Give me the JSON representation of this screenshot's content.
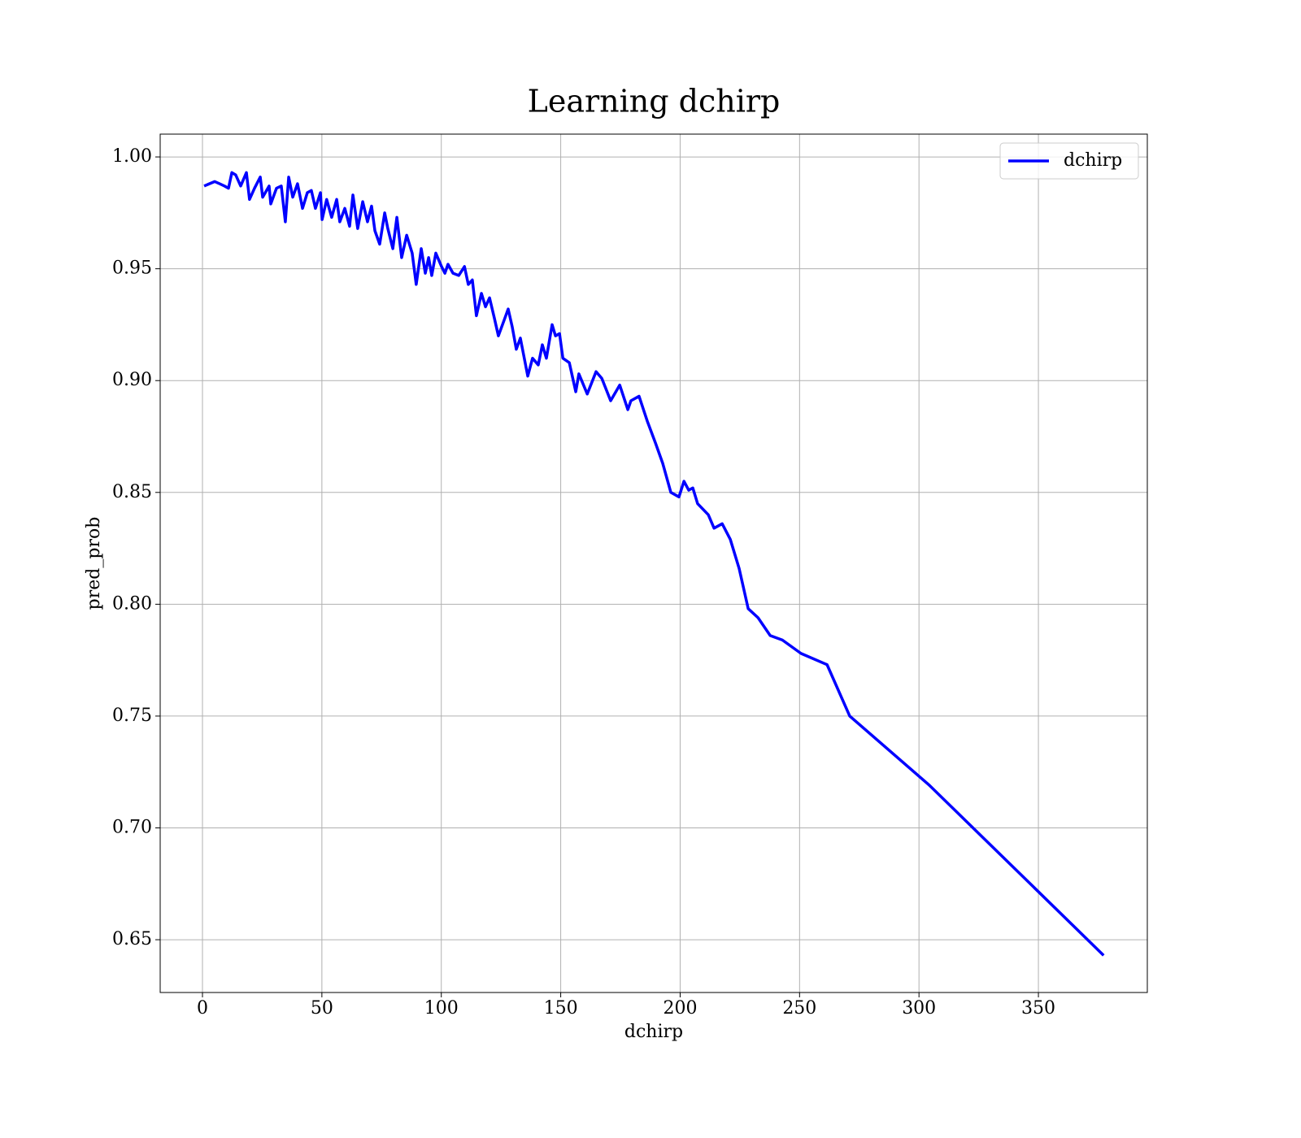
{
  "chart_data": {
    "type": "line",
    "title": "Learning dchirp",
    "xlabel": "dchirp",
    "ylabel": "pred_prob",
    "x": [
      0.7,
      5.1,
      7.2,
      9.2,
      10.9,
      12.3,
      13.9,
      16,
      18.4,
      19.7,
      21.8,
      24.2,
      25.2,
      27.9,
      28.6,
      31,
      33,
      34.7,
      36.1,
      37.8,
      39.8,
      41.9,
      43.9,
      45.6,
      47.3,
      49.4,
      50.1,
      52,
      54.1,
      56.2,
      57.5,
      59.6,
      61.6,
      63,
      65,
      67.1,
      69.1,
      70.8,
      72.2,
      74.2,
      76.3,
      77.6,
      79.7,
      81.4,
      83.4,
      85.5,
      87.8,
      89.5,
      91.6,
      93.3,
      94.7,
      96,
      97.7,
      100.1,
      101.5,
      102.8,
      104.9,
      107.3,
      109.7,
      111.3,
      113,
      114.7,
      116.8,
      118.5,
      120.2,
      122.2,
      123.9,
      126.3,
      128,
      129.7,
      131.4,
      133.1,
      136.2,
      138.2,
      140.6,
      142.3,
      144,
      146.4,
      147.8,
      149.5,
      150.9,
      153.6,
      156.3,
      157.6,
      161.1,
      164.8,
      167.2,
      170.9,
      174.7,
      178.1,
      179.4,
      182.8,
      186.2,
      189.7,
      192.7,
      196.1,
      199.5,
      201.6,
      203.6,
      205.3,
      207.3,
      211.8,
      214.2,
      217.6,
      221,
      224.7,
      228.5,
      232.6,
      237.7,
      242.8,
      250.6,
      261.5,
      271,
      304.4,
      377.3
    ],
    "series": [
      {
        "name": "dchirp",
        "color": "#0000ff",
        "values": [
          0.987,
          0.989,
          0.988,
          0.987,
          0.986,
          0.993,
          0.992,
          0.987,
          0.993,
          0.981,
          0.986,
          0.991,
          0.982,
          0.987,
          0.979,
          0.986,
          0.987,
          0.971,
          0.991,
          0.982,
          0.988,
          0.977,
          0.984,
          0.985,
          0.977,
          0.984,
          0.972,
          0.981,
          0.973,
          0.981,
          0.971,
          0.977,
          0.969,
          0.983,
          0.968,
          0.98,
          0.971,
          0.978,
          0.967,
          0.961,
          0.975,
          0.968,
          0.959,
          0.973,
          0.955,
          0.965,
          0.957,
          0.943,
          0.959,
          0.948,
          0.955,
          0.947,
          0.957,
          0.951,
          0.948,
          0.952,
          0.948,
          0.947,
          0.951,
          0.943,
          0.945,
          0.929,
          0.939,
          0.933,
          0.937,
          0.928,
          0.92,
          0.927,
          0.932,
          0.924,
          0.914,
          0.919,
          0.902,
          0.91,
          0.907,
          0.916,
          0.91,
          0.925,
          0.92,
          0.921,
          0.91,
          0.908,
          0.895,
          0.903,
          0.894,
          0.904,
          0.901,
          0.891,
          0.898,
          0.887,
          0.891,
          0.893,
          0.882,
          0.872,
          0.863,
          0.85,
          0.848,
          0.855,
          0.851,
          0.852,
          0.845,
          0.84,
          0.834,
          0.836,
          0.829,
          0.816,
          0.798,
          0.794,
          0.786,
          0.784,
          0.778,
          0.773,
          0.75,
          0.719,
          0.643
        ]
      }
    ],
    "xlim": [
      -17.7,
      395.6
    ],
    "ylim": [
      0.6264,
      1.0102
    ],
    "xticks": [
      0,
      50,
      100,
      150,
      200,
      250,
      300,
      350
    ],
    "yticks": [
      0.65,
      {
        "value": 0.7,
        "label": "0.70"
      },
      0.75,
      {
        "value": 0.8,
        "label": "0.80"
      },
      0.85,
      {
        "value": 0.9,
        "label": "0.90"
      },
      0.95,
      {
        "value": 1,
        "label": "1.00"
      }
    ],
    "grid": true,
    "legend": "upper right"
  }
}
